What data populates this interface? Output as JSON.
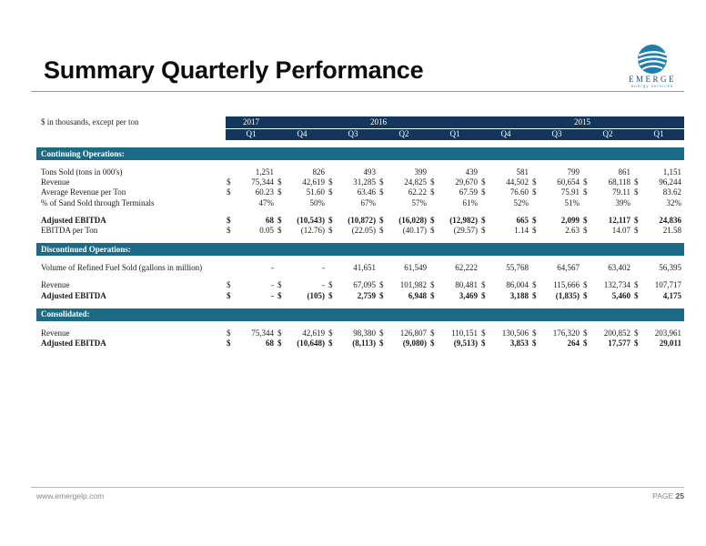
{
  "title": "Summary Quarterly Performance",
  "logo": {
    "brand": "EMERGE",
    "tagline": "energy services"
  },
  "caption": "$ in thousands, except per ton",
  "years": [
    "2017",
    "2016",
    "2015"
  ],
  "quarters": [
    "Q1",
    "Q4",
    "Q3",
    "Q2",
    "Q1",
    "Q4",
    "Q3",
    "Q2",
    "Q1"
  ],
  "sections": [
    {
      "title": "Continuing Operations:",
      "rows": [
        {
          "label": "Tons Sold (tons in 000's)",
          "bold": false,
          "cells": [
            [
              "",
              "1,251"
            ],
            [
              "",
              "826"
            ],
            [
              "",
              "493"
            ],
            [
              "",
              "399"
            ],
            [
              "",
              "439"
            ],
            [
              "",
              "581"
            ],
            [
              "",
              "799"
            ],
            [
              "",
              "861"
            ],
            [
              "",
              "1,151"
            ]
          ]
        },
        {
          "label": "Revenue",
          "bold": false,
          "cells": [
            [
              "$",
              "75,344"
            ],
            [
              "$",
              "42,619"
            ],
            [
              "$",
              "31,285"
            ],
            [
              "$",
              "24,825"
            ],
            [
              "$",
              "29,670"
            ],
            [
              "$",
              "44,502"
            ],
            [
              "$",
              "60,654"
            ],
            [
              "$",
              "68,118"
            ],
            [
              "$",
              "96,244"
            ]
          ]
        },
        {
          "label": "Average Revenue per Ton",
          "bold": false,
          "cells": [
            [
              "$",
              "60.23"
            ],
            [
              "$",
              "51.60"
            ],
            [
              "$",
              "63.46"
            ],
            [
              "$",
              "62.22"
            ],
            [
              "$",
              "67.59"
            ],
            [
              "$",
              "76.60"
            ],
            [
              "$",
              "75.91"
            ],
            [
              "$",
              "79.11"
            ],
            [
              "$",
              "83.62"
            ]
          ]
        },
        {
          "label": "% of Sand Sold through Terminals",
          "bold": false,
          "cells": [
            [
              "",
              "47%"
            ],
            [
              "",
              "50%"
            ],
            [
              "",
              "67%"
            ],
            [
              "",
              "57%"
            ],
            [
              "",
              "61%"
            ],
            [
              "",
              "52%"
            ],
            [
              "",
              "51%"
            ],
            [
              "",
              "39%"
            ],
            [
              "",
              "32%"
            ]
          ]
        },
        {
          "spacer": true
        },
        {
          "label": "Adjusted EBITDA",
          "bold": true,
          "cells": [
            [
              "$",
              "68"
            ],
            [
              "$",
              "(10,543)"
            ],
            [
              "$",
              "(10,872)"
            ],
            [
              "$",
              "(16,028)"
            ],
            [
              "$",
              "(12,982)"
            ],
            [
              "$",
              "665"
            ],
            [
              "$",
              "2,099"
            ],
            [
              "$",
              "12,117"
            ],
            [
              "$",
              "24,836"
            ]
          ]
        },
        {
          "label": "EBITDA per Ton",
          "bold": false,
          "cells": [
            [
              "$",
              "0.05"
            ],
            [
              "$",
              "(12.76)"
            ],
            [
              "$",
              "(22.05)"
            ],
            [
              "$",
              "(40.17)"
            ],
            [
              "$",
              "(29.57)"
            ],
            [
              "$",
              "1.14"
            ],
            [
              "$",
              "2.63"
            ],
            [
              "$",
              "14.07"
            ],
            [
              "$",
              "21.58"
            ]
          ]
        }
      ]
    },
    {
      "title": "Discontinued Operations:",
      "rows": [
        {
          "label": "Volume of Refined Fuel Sold (gallons in million)",
          "bold": false,
          "cells": [
            [
              "",
              "-"
            ],
            [
              "",
              "-"
            ],
            [
              "",
              "41,651"
            ],
            [
              "",
              "61,549"
            ],
            [
              "",
              "62,222"
            ],
            [
              "",
              "55,768"
            ],
            [
              "",
              "64,567"
            ],
            [
              "",
              "63,402"
            ],
            [
              "",
              "56,395"
            ]
          ]
        },
        {
          "spacer": true
        },
        {
          "label": "Revenue",
          "bold": false,
          "cells": [
            [
              "$",
              "-"
            ],
            [
              "$",
              "-"
            ],
            [
              "$",
              "67,095"
            ],
            [
              "$",
              "101,982"
            ],
            [
              "$",
              "80,481"
            ],
            [
              "$",
              "86,004"
            ],
            [
              "$",
              "115,666"
            ],
            [
              "$",
              "132,734"
            ],
            [
              "$",
              "107,717"
            ]
          ]
        },
        {
          "label": "Adjusted EBITDA",
          "bold": true,
          "cells": [
            [
              "$",
              "-"
            ],
            [
              "$",
              "(105)"
            ],
            [
              "$",
              "2,759"
            ],
            [
              "$",
              "6,948"
            ],
            [
              "$",
              "3,469"
            ],
            [
              "$",
              "3,188"
            ],
            [
              "$",
              "(1,835)"
            ],
            [
              "$",
              "5,460"
            ],
            [
              "$",
              "4,175"
            ]
          ]
        }
      ]
    },
    {
      "title": "Consolidated:",
      "rows": [
        {
          "label": "Revenue",
          "bold": false,
          "cells": [
            [
              "$",
              "75,344"
            ],
            [
              "$",
              "42,619"
            ],
            [
              "$",
              "98,380"
            ],
            [
              "$",
              "126,807"
            ],
            [
              "$",
              "110,151"
            ],
            [
              "$",
              "130,506"
            ],
            [
              "$",
              "176,320"
            ],
            [
              "$",
              "200,852"
            ],
            [
              "$",
              "203,961"
            ]
          ]
        },
        {
          "label": "Adjusted EBITDA",
          "bold": true,
          "cells": [
            [
              "$",
              "68"
            ],
            [
              "$",
              "(10,648)"
            ],
            [
              "$",
              "(8,113)"
            ],
            [
              "$",
              "(9,080)"
            ],
            [
              "$",
              "(9,513)"
            ],
            [
              "$",
              "3,853"
            ],
            [
              "$",
              "264"
            ],
            [
              "$",
              "17,577"
            ],
            [
              "$",
              "29,011"
            ]
          ]
        }
      ]
    }
  ],
  "footer": {
    "website": "www.emergelp.com",
    "page_label": "PAGE",
    "page_number": "25"
  },
  "colors": {
    "header_navy": "#14365a",
    "section_teal": "#1d6a86",
    "logo_blue": "#1d4d7a"
  }
}
